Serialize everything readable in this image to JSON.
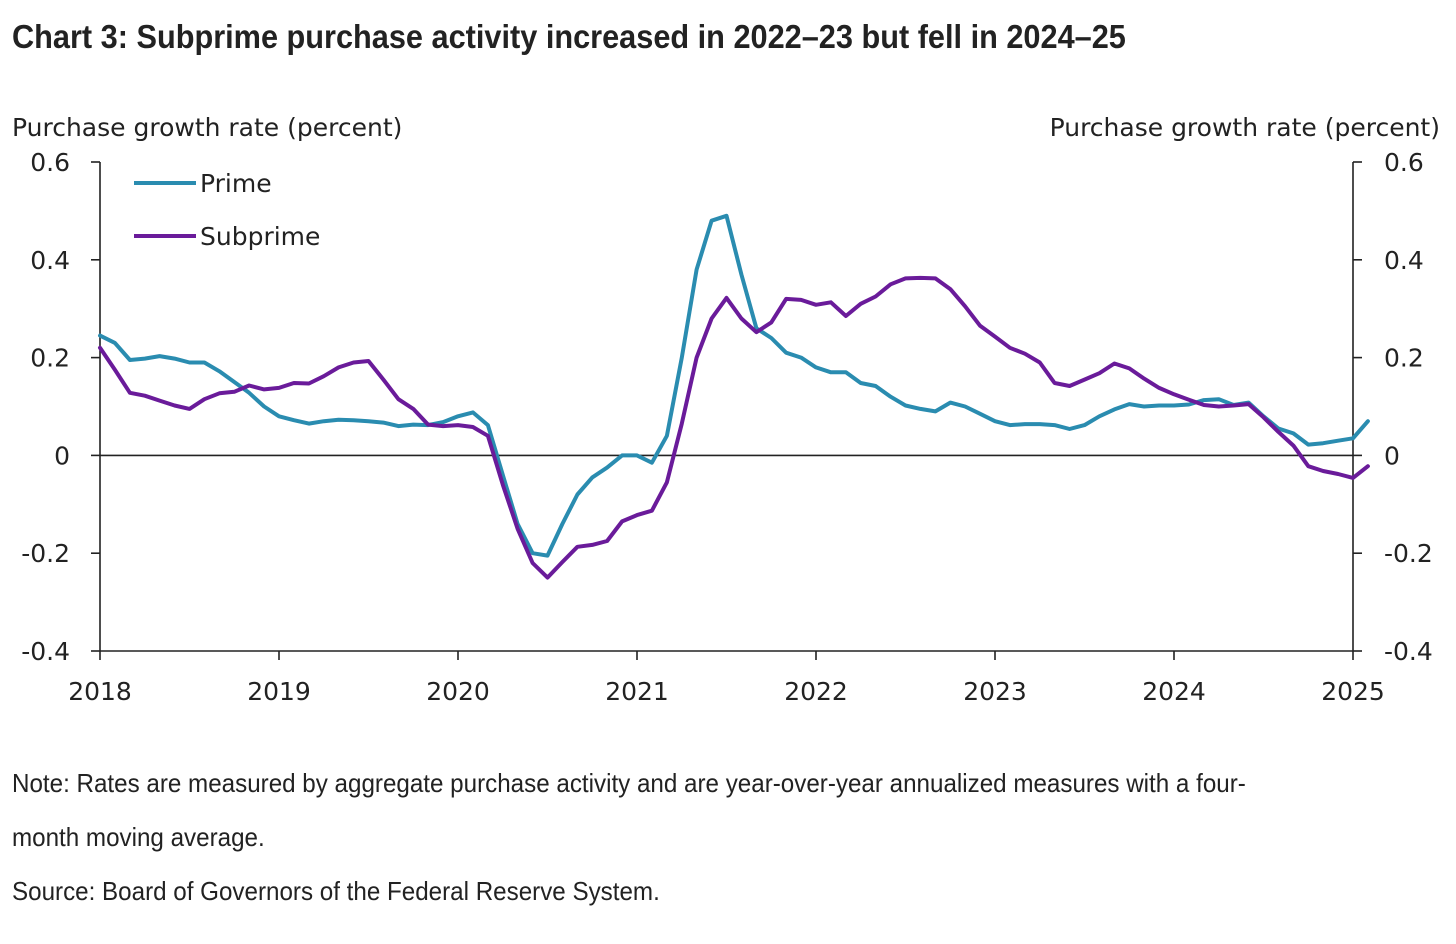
{
  "chart_title": "Chart 3: Subprime purchase activity increased in 2022–23 but fell in 2024–25",
  "note": {
    "line1": "Note: Rates are measured by aggregate purchase activity and are year-over-year annualized measures with a four-",
    "line2": "month moving average."
  },
  "source": "Source: Board of Governors of the Federal Reserve System.",
  "chart_data": {
    "type": "line",
    "ylabel_left": "Purchase growth rate (percent)",
    "ylabel_right": "Purchase growth rate (percent)",
    "ylim": [
      -0.4,
      0.6
    ],
    "yticks": [
      -0.4,
      -0.2,
      0,
      0.2,
      0.4,
      0.6
    ],
    "ytick_labels": [
      "-0.4",
      "-0.2",
      "0",
      "0.2",
      "0.4",
      "0.6"
    ],
    "xlim": [
      2018,
      2025
    ],
    "xticks": [
      2018,
      2019,
      2020,
      2021,
      2022,
      2023,
      2024,
      2025
    ],
    "xtick_labels": [
      "2018",
      "2019",
      "2020",
      "2021",
      "2022",
      "2023",
      "2024",
      "2025"
    ],
    "grid": false,
    "legend_position": "top-left",
    "series": [
      {
        "name": "Prime",
        "color": "#2a8cb0",
        "points": [
          [
            2018.0,
            0.245
          ],
          [
            2018.083,
            0.23
          ],
          [
            2018.167,
            0.195
          ],
          [
            2018.25,
            0.198
          ],
          [
            2018.333,
            0.203
          ],
          [
            2018.417,
            0.198
          ],
          [
            2018.5,
            0.19
          ],
          [
            2018.583,
            0.19
          ],
          [
            2018.667,
            0.172
          ],
          [
            2018.75,
            0.15
          ],
          [
            2018.833,
            0.128
          ],
          [
            2018.917,
            0.1
          ],
          [
            2019.0,
            0.08
          ],
          [
            2019.083,
            0.072
          ],
          [
            2019.167,
            0.065
          ],
          [
            2019.25,
            0.07
          ],
          [
            2019.333,
            0.073
          ],
          [
            2019.417,
            0.072
          ],
          [
            2019.5,
            0.07
          ],
          [
            2019.583,
            0.067
          ],
          [
            2019.667,
            0.06
          ],
          [
            2019.75,
            0.063
          ],
          [
            2019.833,
            0.062
          ],
          [
            2019.917,
            0.068
          ],
          [
            2020.0,
            0.08
          ],
          [
            2020.083,
            0.088
          ],
          [
            2020.167,
            0.062
          ],
          [
            2020.25,
            -0.04
          ],
          [
            2020.333,
            -0.14
          ],
          [
            2020.417,
            -0.2
          ],
          [
            2020.5,
            -0.205
          ],
          [
            2020.583,
            -0.14
          ],
          [
            2020.667,
            -0.08
          ],
          [
            2020.75,
            -0.045
          ],
          [
            2020.833,
            -0.025
          ],
          [
            2020.917,
            0.0
          ],
          [
            2021.0,
            0.0
          ],
          [
            2021.083,
            -0.015
          ],
          [
            2021.167,
            0.04
          ],
          [
            2021.25,
            0.2
          ],
          [
            2021.333,
            0.38
          ],
          [
            2021.417,
            0.48
          ],
          [
            2021.5,
            0.49
          ],
          [
            2021.583,
            0.37
          ],
          [
            2021.667,
            0.26
          ],
          [
            2021.75,
            0.24
          ],
          [
            2021.833,
            0.21
          ],
          [
            2021.917,
            0.2
          ],
          [
            2022.0,
            0.18
          ],
          [
            2022.083,
            0.17
          ],
          [
            2022.167,
            0.17
          ],
          [
            2022.25,
            0.148
          ],
          [
            2022.333,
            0.142
          ],
          [
            2022.417,
            0.12
          ],
          [
            2022.5,
            0.102
          ],
          [
            2022.583,
            0.095
          ],
          [
            2022.667,
            0.09
          ],
          [
            2022.75,
            0.108
          ],
          [
            2022.833,
            0.1
          ],
          [
            2022.917,
            0.085
          ],
          [
            2023.0,
            0.07
          ],
          [
            2023.083,
            0.062
          ],
          [
            2023.167,
            0.064
          ],
          [
            2023.25,
            0.064
          ],
          [
            2023.333,
            0.062
          ],
          [
            2023.417,
            0.054
          ],
          [
            2023.5,
            0.062
          ],
          [
            2023.583,
            0.08
          ],
          [
            2023.667,
            0.094
          ],
          [
            2023.75,
            0.105
          ],
          [
            2023.833,
            0.1
          ],
          [
            2023.917,
            0.102
          ],
          [
            2024.0,
            0.102
          ],
          [
            2024.083,
            0.104
          ],
          [
            2024.167,
            0.113
          ],
          [
            2024.25,
            0.115
          ],
          [
            2024.333,
            0.103
          ],
          [
            2024.417,
            0.108
          ],
          [
            2024.5,
            0.08
          ],
          [
            2024.583,
            0.055
          ],
          [
            2024.667,
            0.045
          ],
          [
            2024.75,
            0.022
          ],
          [
            2024.833,
            0.025
          ],
          [
            2024.917,
            0.03
          ],
          [
            2025.0,
            0.035
          ],
          [
            2025.083,
            0.07
          ]
        ]
      },
      {
        "name": "Subprime",
        "color": "#6a1b9a",
        "points": [
          [
            2018.0,
            0.22
          ],
          [
            2018.083,
            0.175
          ],
          [
            2018.167,
            0.128
          ],
          [
            2018.25,
            0.122
          ],
          [
            2018.333,
            0.112
          ],
          [
            2018.417,
            0.102
          ],
          [
            2018.5,
            0.095
          ],
          [
            2018.583,
            0.115
          ],
          [
            2018.667,
            0.127
          ],
          [
            2018.75,
            0.13
          ],
          [
            2018.833,
            0.143
          ],
          [
            2018.917,
            0.135
          ],
          [
            2019.0,
            0.138
          ],
          [
            2019.083,
            0.148
          ],
          [
            2019.167,
            0.147
          ],
          [
            2019.25,
            0.162
          ],
          [
            2019.333,
            0.18
          ],
          [
            2019.417,
            0.19
          ],
          [
            2019.5,
            0.193
          ],
          [
            2019.583,
            0.155
          ],
          [
            2019.667,
            0.115
          ],
          [
            2019.75,
            0.095
          ],
          [
            2019.833,
            0.063
          ],
          [
            2019.917,
            0.06
          ],
          [
            2020.0,
            0.062
          ],
          [
            2020.083,
            0.058
          ],
          [
            2020.167,
            0.04
          ],
          [
            2020.25,
            -0.06
          ],
          [
            2020.333,
            -0.15
          ],
          [
            2020.417,
            -0.22
          ],
          [
            2020.5,
            -0.25
          ],
          [
            2020.583,
            -0.218
          ],
          [
            2020.667,
            -0.187
          ],
          [
            2020.75,
            -0.183
          ],
          [
            2020.833,
            -0.175
          ],
          [
            2020.917,
            -0.135
          ],
          [
            2021.0,
            -0.122
          ],
          [
            2021.083,
            -0.113
          ],
          [
            2021.167,
            -0.055
          ],
          [
            2021.25,
            0.065
          ],
          [
            2021.333,
            0.2
          ],
          [
            2021.417,
            0.28
          ],
          [
            2021.5,
            0.322
          ],
          [
            2021.583,
            0.28
          ],
          [
            2021.667,
            0.252
          ],
          [
            2021.75,
            0.272
          ],
          [
            2021.833,
            0.32
          ],
          [
            2021.917,
            0.318
          ],
          [
            2022.0,
            0.308
          ],
          [
            2022.083,
            0.313
          ],
          [
            2022.167,
            0.285
          ],
          [
            2022.25,
            0.31
          ],
          [
            2022.333,
            0.325
          ],
          [
            2022.417,
            0.35
          ],
          [
            2022.5,
            0.362
          ],
          [
            2022.583,
            0.363
          ],
          [
            2022.667,
            0.362
          ],
          [
            2022.75,
            0.34
          ],
          [
            2022.833,
            0.305
          ],
          [
            2022.917,
            0.265
          ],
          [
            2023.0,
            0.243
          ],
          [
            2023.083,
            0.22
          ],
          [
            2023.167,
            0.208
          ],
          [
            2023.25,
            0.19
          ],
          [
            2023.333,
            0.148
          ],
          [
            2023.417,
            0.142
          ],
          [
            2023.5,
            0.155
          ],
          [
            2023.583,
            0.168
          ],
          [
            2023.667,
            0.188
          ],
          [
            2023.75,
            0.178
          ],
          [
            2023.833,
            0.157
          ],
          [
            2023.917,
            0.138
          ],
          [
            2024.0,
            0.125
          ],
          [
            2024.083,
            0.114
          ],
          [
            2024.167,
            0.103
          ],
          [
            2024.25,
            0.1
          ],
          [
            2024.333,
            0.102
          ],
          [
            2024.417,
            0.105
          ],
          [
            2024.5,
            0.078
          ],
          [
            2024.583,
            0.048
          ],
          [
            2024.667,
            0.02
          ],
          [
            2024.75,
            -0.022
          ],
          [
            2024.833,
            -0.032
          ],
          [
            2024.917,
            -0.038
          ],
          [
            2025.0,
            -0.046
          ],
          [
            2025.083,
            -0.022
          ]
        ]
      }
    ]
  }
}
